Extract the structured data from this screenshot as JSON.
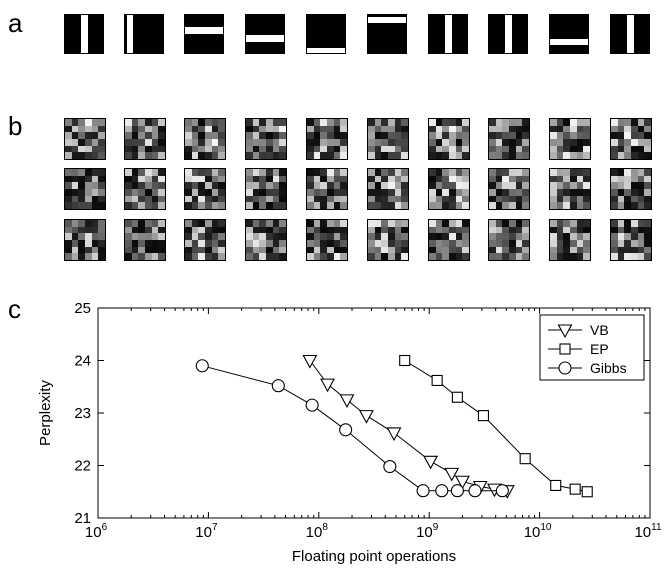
{
  "panels": {
    "a": "a",
    "b": "b",
    "c": "c"
  },
  "panel_a": {
    "features": [
      {
        "orientation": "vertical",
        "position": 0.42
      },
      {
        "orientation": "vertical",
        "position": 0.04
      },
      {
        "orientation": "horizontal",
        "position": 0.32
      },
      {
        "orientation": "horizontal",
        "position": 0.52
      },
      {
        "orientation": "horizontal",
        "position": 0.86
      },
      {
        "orientation": "horizontal",
        "position": 0.04
      },
      {
        "orientation": "vertical",
        "position": 0.42
      },
      {
        "orientation": "vertical",
        "position": 0.42
      },
      {
        "orientation": "horizontal",
        "position": 0.62
      },
      {
        "orientation": "vertical",
        "position": 0.42
      }
    ]
  },
  "panel_b": {
    "rows": 3,
    "columns": 10,
    "grid": "6x6 grayscale samples"
  },
  "chart_data": {
    "type": "line",
    "title": "",
    "xlabel": "Floating point operations",
    "ylabel": "Perplexity",
    "xscale": "log",
    "xlim": [
      1000000,
      100000000000
    ],
    "ylim": [
      21,
      25
    ],
    "xticks": [
      {
        "value": 1000000,
        "base": "10",
        "exp": "6"
      },
      {
        "value": 10000000,
        "base": "10",
        "exp": "7"
      },
      {
        "value": 100000000,
        "base": "10",
        "exp": "8"
      },
      {
        "value": 1000000000,
        "base": "10",
        "exp": "9"
      },
      {
        "value": 10000000000,
        "base": "10",
        "exp": "10"
      },
      {
        "value": 100000000000,
        "base": "10",
        "exp": "11"
      }
    ],
    "yticks": [
      "21",
      "22",
      "23",
      "24",
      "25"
    ],
    "grid": false,
    "legend": "top-right",
    "series": [
      {
        "name": "VB",
        "marker": "triangle-down",
        "x": [
          83000000,
          120000000,
          180000000,
          270000000,
          480000000,
          1030000000,
          1600000000,
          2000000000,
          2900000000,
          3900000000,
          5100000000
        ],
        "y": [
          24.0,
          23.55,
          23.25,
          22.95,
          22.62,
          22.08,
          21.85,
          21.7,
          21.6,
          21.55,
          21.52
        ]
      },
      {
        "name": "EP",
        "marker": "square",
        "x": [
          600000000,
          1180000000,
          1800000000,
          3100000000,
          7400000000,
          14000000000,
          21000000000,
          27000000000
        ],
        "y": [
          24.0,
          23.62,
          23.3,
          22.95,
          22.13,
          21.62,
          21.55,
          21.5
        ]
      },
      {
        "name": "Gibbs",
        "marker": "circle",
        "x": [
          8800000,
          43000000,
          87000000,
          175000000,
          440000000,
          880000000,
          1300000000,
          1800000000,
          2600000000,
          4600000000
        ],
        "y": [
          23.9,
          23.52,
          23.15,
          22.68,
          21.98,
          21.52,
          21.52,
          21.52,
          21.52,
          21.52
        ]
      }
    ]
  }
}
